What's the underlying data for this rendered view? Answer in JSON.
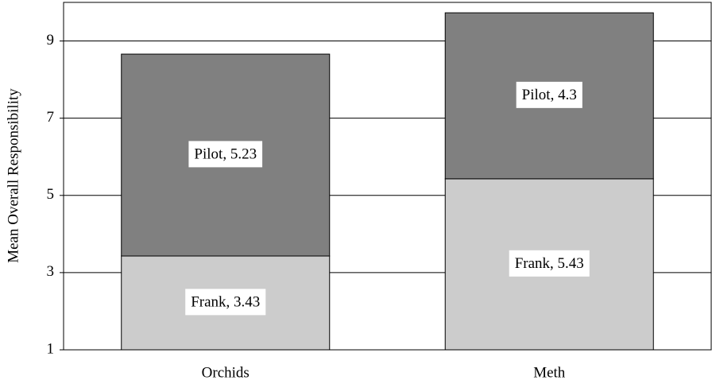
{
  "chart_data": {
    "type": "stacked_bar",
    "y_label": "Mean Overall Responsibility",
    "categories": [
      "Orchids",
      "Meth"
    ],
    "series": [
      {
        "name": "Frank",
        "color": "#cccccc",
        "values": [
          3.43,
          5.43
        ],
        "value_labels": [
          "Frank, 3.43",
          "Frank, 5.43"
        ]
      },
      {
        "name": "Pilot",
        "color": "#808080",
        "values": [
          5.23,
          4.3
        ],
        "value_labels": [
          "Pilot, 5.23",
          "Pilot, 4.3"
        ]
      }
    ],
    "ylim": [
      1,
      10
    ],
    "yticks": [
      1,
      3,
      5,
      7,
      9
    ],
    "grid": true
  }
}
